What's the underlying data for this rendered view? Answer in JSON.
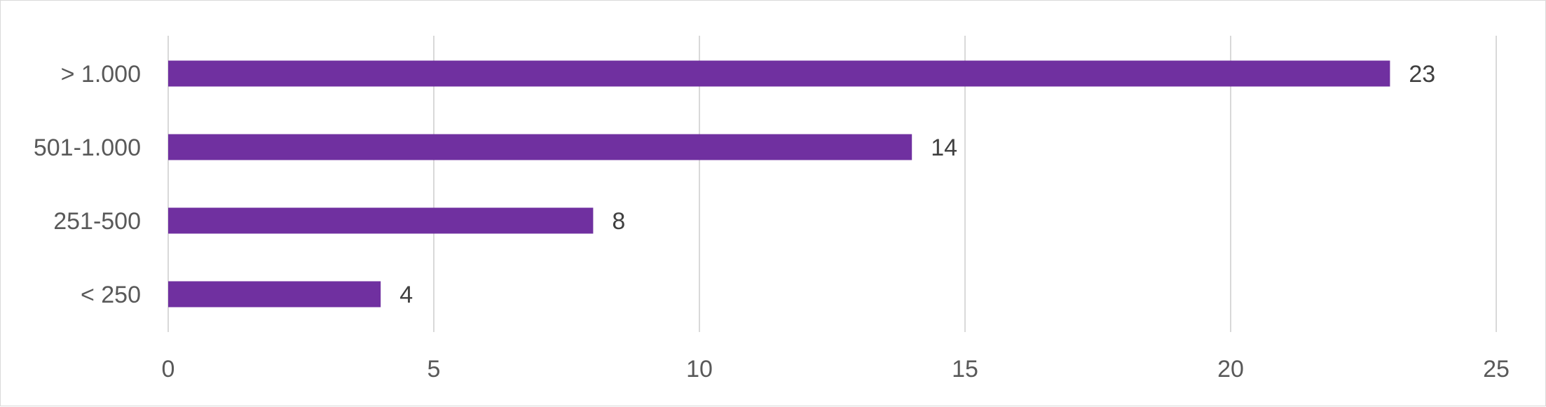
{
  "chart_data": {
    "type": "bar",
    "orientation": "horizontal",
    "categories": [
      "> 1.000",
      "501-1.000",
      "251-500",
      "< 250"
    ],
    "values": [
      23,
      14,
      8,
      4
    ],
    "data_labels": [
      "23",
      "14",
      "8",
      "4"
    ],
    "xlim": [
      0,
      25
    ],
    "x_ticks": [
      0,
      5,
      10,
      15,
      20,
      25
    ],
    "x_tick_labels": [
      "0",
      "5",
      "10",
      "15",
      "20",
      "25"
    ],
    "title": "",
    "xlabel": "",
    "ylabel": "",
    "grid": "vertical",
    "legend": "none",
    "bar_color": "#7030a0",
    "grid_color": "#d9d9d9",
    "text_color": "#595959"
  }
}
